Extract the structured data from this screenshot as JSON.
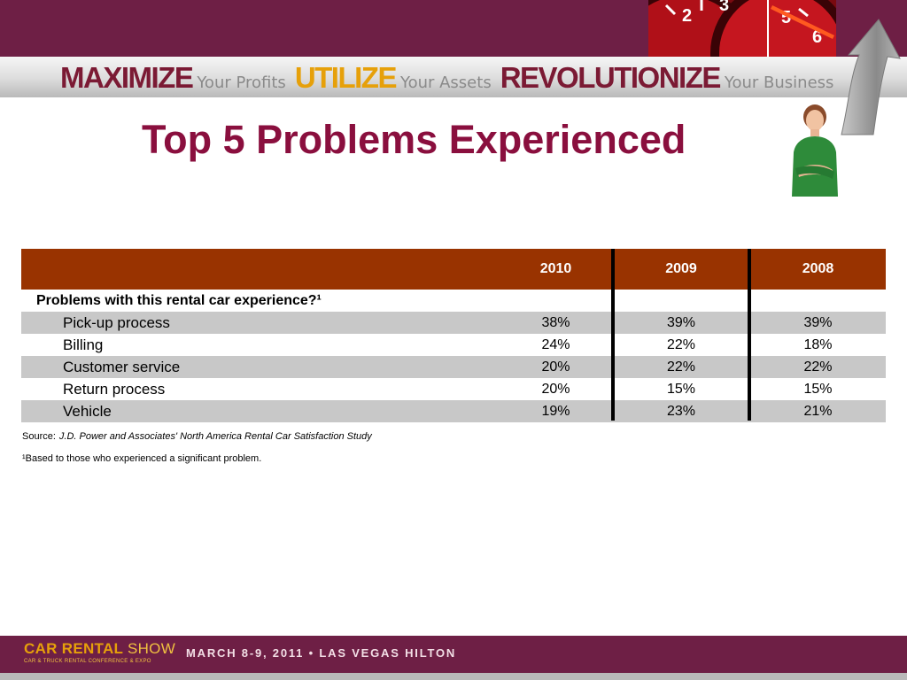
{
  "header": {
    "slogan": [
      {
        "big": "MAXIMIZE",
        "small": "Your Profits",
        "color": "#7b1a34"
      },
      {
        "big": "UTILIZE",
        "small": "Your Assets",
        "color": "#e6a00a"
      },
      {
        "big": "REVOLUTIONIZE",
        "small": "Your Business",
        "color": "#7b1a34"
      }
    ],
    "gauge_icon": "speedometer-icon",
    "arrow_icon": "curved-arrow-icon"
  },
  "title": "Top 5 Problems Experienced",
  "table": {
    "columns": [
      "2010",
      "2009",
      "2008"
    ],
    "section_label": "Problems with this rental car experience?¹",
    "rows": [
      {
        "label": "Pick-up process",
        "values": [
          "38%",
          "39%",
          "39%"
        ]
      },
      {
        "label": "Billing",
        "values": [
          "24%",
          "22%",
          "18%"
        ]
      },
      {
        "label": "Customer service",
        "values": [
          "20%",
          "22%",
          "22%"
        ]
      },
      {
        "label": "Return process",
        "values": [
          "20%",
          "15%",
          "15%"
        ]
      },
      {
        "label": "Vehicle",
        "values": [
          "19%",
          "23%",
          "21%"
        ]
      }
    ],
    "header_color": "#993300",
    "row_shade_color": "#c8c8c8"
  },
  "source": {
    "prefix": "Source:",
    "study": "J.D. Power and Associates' North America Rental Car Satisfaction Study"
  },
  "footnote": "¹Based to those who experienced a significant problem.",
  "footer": {
    "logo_name_bold": "CAR RENTAL",
    "logo_name_thin": "SHOW",
    "logo_tagline": "CAR & TRUCK RENTAL CONFERENCE & EXPO",
    "event": "MARCH 8-9, 2011 • LAS VEGAS HILTON"
  }
}
